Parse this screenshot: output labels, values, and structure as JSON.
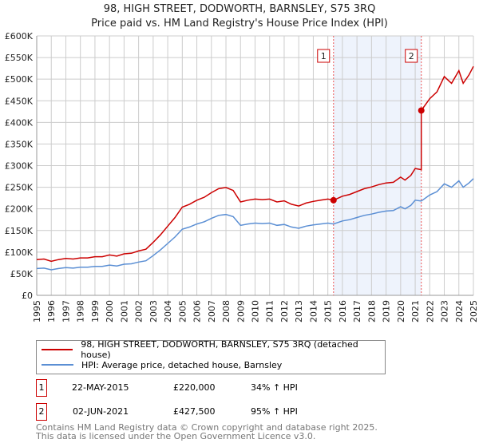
{
  "chart_data": {
    "type": "line",
    "title": "98, HIGH STREET, DODWORTH, BARNSLEY, S75 3RQ",
    "subtitle": "Price paid vs. HM Land Registry's House Price Index (HPI)",
    "xlim": [
      1995,
      2025
    ],
    "ylim": [
      0,
      600000
    ],
    "x_ticks": [
      "1995",
      "1996",
      "1997",
      "1998",
      "1999",
      "2000",
      "2001",
      "2002",
      "2003",
      "2004",
      "2005",
      "2006",
      "2007",
      "2008",
      "2009",
      "2010",
      "2011",
      "2012",
      "2013",
      "2014",
      "2015",
      "2016",
      "2017",
      "2018",
      "2019",
      "2020",
      "2021",
      "2022",
      "2023",
      "2024",
      "2025"
    ],
    "y_ticks": [
      {
        "v": 0,
        "label": "£0"
      },
      {
        "v": 50000,
        "label": "£50K"
      },
      {
        "v": 100000,
        "label": "£100K"
      },
      {
        "v": 150000,
        "label": "£150K"
      },
      {
        "v": 200000,
        "label": "£200K"
      },
      {
        "v": 250000,
        "label": "£250K"
      },
      {
        "v": 300000,
        "label": "£300K"
      },
      {
        "v": 350000,
        "label": "£350K"
      },
      {
        "v": 400000,
        "label": "£400K"
      },
      {
        "v": 450000,
        "label": "£450K"
      },
      {
        "v": 500000,
        "label": "£500K"
      },
      {
        "v": 550000,
        "label": "£550K"
      },
      {
        "v": 600000,
        "label": "£600K"
      }
    ],
    "grid": true,
    "hpi_series": {
      "name": "HPI: Average price, detached house, Barnsley",
      "color": "#5b8fd4",
      "x": [
        1995,
        1995.5,
        1996,
        1996.5,
        1997,
        1997.5,
        1998,
        1998.5,
        1999,
        1999.5,
        2000,
        2000.5,
        2001,
        2001.5,
        2002,
        2002.5,
        2003,
        2003.5,
        2004,
        2004.5,
        2005,
        2005.5,
        2006,
        2006.5,
        2007,
        2007.5,
        2008,
        2008.5,
        2009,
        2009.5,
        2010,
        2010.5,
        2011,
        2011.5,
        2012,
        2012.5,
        2013,
        2013.5,
        2014,
        2014.5,
        2015,
        2015.39,
        2016,
        2016.5,
        2017,
        2017.5,
        2018,
        2018.5,
        2019,
        2019.5,
        2020,
        2020.3,
        2020.7,
        2021,
        2021.42,
        2022,
        2022.5,
        2023,
        2023.5,
        2024,
        2024.3,
        2024.7,
        2025
      ],
      "y": [
        62000,
        63000,
        59000,
        62000,
        64000,
        63000,
        65000,
        65000,
        67000,
        67000,
        70000,
        68000,
        72000,
        73000,
        77000,
        80000,
        92000,
        105000,
        120000,
        135000,
        153000,
        158000,
        165000,
        170000,
        178000,
        185000,
        187000,
        182000,
        162000,
        165000,
        167000,
        166000,
        167000,
        162000,
        164000,
        158000,
        155000,
        160000,
        163000,
        165000,
        167000,
        165000,
        172000,
        175000,
        180000,
        185000,
        188000,
        192000,
        195000,
        196000,
        205000,
        200000,
        208000,
        220000,
        218000,
        232000,
        240000,
        258000,
        250000,
        265000,
        250000,
        260000,
        270000
      ]
    },
    "property_series": {
      "name": "98, HIGH STREET, DODWORTH, BARNSLEY, S75 3RQ (detached house)",
      "color": "#cc0000"
    },
    "sales": [
      {
        "id": "1",
        "x": 2015.39,
        "date": "22-MAY-2015",
        "price": 220000,
        "price_label": "£220,000",
        "hpi_label": "34% ↑ HPI"
      },
      {
        "id": "2",
        "x": 2021.42,
        "date": "02-JUN-2021",
        "price": 427500,
        "price_label": "£427,500",
        "hpi_label": "95% ↑ HPI"
      }
    ],
    "shade_color": "#eef3fc"
  },
  "legend": {
    "property": "98, HIGH STREET, DODWORTH, BARNSLEY, S75 3RQ (detached house)",
    "hpi": "HPI: Average price, detached house, Barnsley"
  },
  "footer": {
    "line1": "Contains HM Land Registry data © Crown copyright and database right 2025.",
    "line2": "This data is licensed under the Open Government Licence v3.0."
  }
}
